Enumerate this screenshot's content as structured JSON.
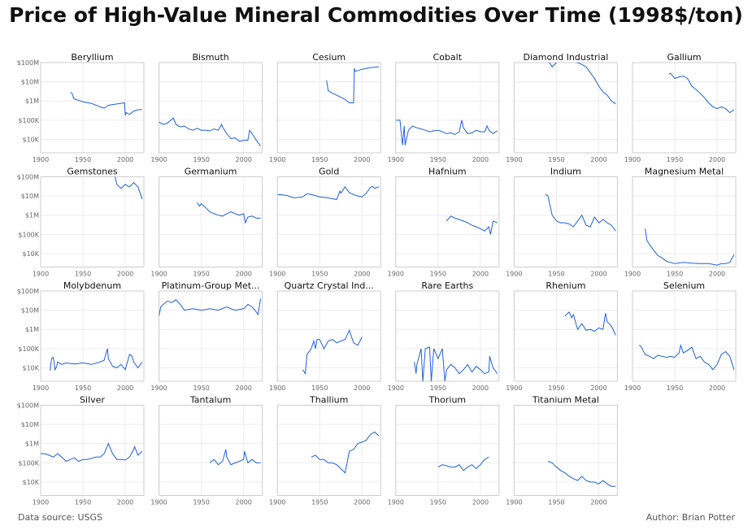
{
  "title": "Price of High-Value Mineral Commodities Over Time (1998$/ton)",
  "source": "Data source: USGS",
  "author": "Author: Brian Potter",
  "colors": {
    "line": "#1f5fe0",
    "grid": "#ececec",
    "frame": "#cccccc"
  },
  "chart_data": {
    "type": "line",
    "y_scale": "log",
    "xlim": [
      1900,
      2022
    ],
    "ylim": [
      2000,
      100000000
    ],
    "x_ticks": [
      1900,
      1950,
      2000
    ],
    "y_ticks": [
      10000,
      100000,
      1000000,
      10000000,
      100000000
    ],
    "y_tick_labels": [
      "$10K",
      "$100K",
      "$1M",
      "$10M",
      "$100M"
    ],
    "grid": true,
    "panels": [
      {
        "name": "Beryllium",
        "x": [
          1935,
          1937,
          1939,
          1941,
          1945,
          1950,
          1960,
          1970,
          1975,
          1980,
          1990,
          1995,
          1999,
          2000,
          2001,
          2005,
          2010,
          2015,
          2020
        ],
        "y": [
          2800000,
          2600000,
          1400000,
          1200000,
          1100000,
          900000,
          750000,
          500000,
          420000,
          600000,
          700000,
          760000,
          800000,
          180000,
          250000,
          200000,
          300000,
          350000,
          360000
        ]
      },
      {
        "name": "Bismuth",
        "x": [
          1900,
          1905,
          1910,
          1915,
          1917,
          1920,
          1925,
          1930,
          1935,
          1940,
          1945,
          1950,
          1955,
          1960,
          1965,
          1970,
          1974,
          1975,
          1980,
          1985,
          1990,
          1995,
          2000,
          2005,
          2007,
          2010,
          2015,
          2020
        ],
        "y": [
          80000,
          60000,
          70000,
          110000,
          130000,
          60000,
          45000,
          50000,
          35000,
          30000,
          38000,
          30000,
          30000,
          28000,
          35000,
          30000,
          60000,
          45000,
          20000,
          11000,
          12000,
          8000,
          9000,
          9000,
          30000,
          20000,
          9000,
          4500
        ]
      },
      {
        "name": "Cesium",
        "x": [
          1958,
          1960,
          1965,
          1970,
          1980,
          1985,
          1990,
          1991,
          1992,
          2000,
          2010,
          2020
        ],
        "y": [
          12000000,
          3500000,
          2500000,
          2000000,
          1200000,
          800000,
          800000,
          50000000,
          35000000,
          45000000,
          55000000,
          60000000
        ]
      },
      {
        "name": "Cobalt",
        "x": [
          1900,
          1905,
          1908,
          1910,
          1911,
          1915,
          1920,
          1925,
          1930,
          1935,
          1940,
          1945,
          1950,
          1955,
          1960,
          1965,
          1970,
          1975,
          1978,
          1980,
          1985,
          1990,
          1995,
          2000,
          2005,
          2008,
          2010,
          2015,
          2020
        ],
        "y": [
          100000,
          100000,
          5000,
          50000,
          5000,
          30000,
          50000,
          40000,
          35000,
          30000,
          25000,
          28000,
          30000,
          25000,
          20000,
          22000,
          18000,
          25000,
          100000,
          40000,
          20000,
          22000,
          30000,
          25000,
          25000,
          50000,
          30000,
          20000,
          28000
        ]
      },
      {
        "name": "Diamond Industrial",
        "x": [
          1940,
          1945,
          1950,
          1955,
          1960,
          1965,
          1970,
          1975,
          1980,
          1985,
          1990,
          1995,
          2000,
          2005,
          2010,
          2015,
          2020
        ],
        "y": [
          130000000,
          60000000,
          100000000,
          150000000,
          140000000,
          120000000,
          110000000,
          100000000,
          80000000,
          60000000,
          30000000,
          15000000,
          6000000,
          3000000,
          2000000,
          1000000,
          700000
        ]
      },
      {
        "name": "Gallium",
        "x": [
          1943,
          1945,
          1950,
          1955,
          1960,
          1965,
          1970,
          1975,
          1980,
          1985,
          1990,
          1995,
          2000,
          2005,
          2010,
          2013,
          2015,
          2020
        ],
        "y": [
          25000000,
          28000000,
          15000000,
          18000000,
          20000000,
          15000000,
          6000000,
          4000000,
          2500000,
          1500000,
          800000,
          500000,
          400000,
          500000,
          400000,
          300000,
          250000,
          350000
        ]
      },
      {
        "name": "Gemstones",
        "x": [
          1988,
          1990,
          1995,
          2000,
          2005,
          2010,
          2015,
          2020
        ],
        "y": [
          100000000,
          40000000,
          25000000,
          40000000,
          30000000,
          50000000,
          30000000,
          7000000
        ]
      },
      {
        "name": "Germanium",
        "x": [
          1945,
          1948,
          1950,
          1955,
          1960,
          1965,
          1970,
          1975,
          1980,
          1985,
          1990,
          1995,
          2000,
          2002,
          2005,
          2010,
          2015,
          2020
        ],
        "y": [
          4500000,
          3000000,
          4000000,
          2500000,
          1500000,
          1200000,
          1000000,
          900000,
          1200000,
          1500000,
          1200000,
          1000000,
          1200000,
          400000,
          800000,
          900000,
          700000,
          700000
        ]
      },
      {
        "name": "Gold",
        "x": [
          1900,
          1910,
          1920,
          1930,
          1935,
          1940,
          1950,
          1960,
          1970,
          1974,
          1975,
          1980,
          1985,
          1990,
          1995,
          2000,
          2005,
          2010,
          2012,
          2015,
          2020
        ],
        "y": [
          12000000,
          11000000,
          8000000,
          9000000,
          13000000,
          12000000,
          9000000,
          8000000,
          6500000,
          18000000,
          14000000,
          30000000,
          15000000,
          12000000,
          10000000,
          9000000,
          14000000,
          28000000,
          32000000,
          25000000,
          30000000
        ]
      },
      {
        "name": "Hafnium",
        "x": [
          1960,
          1965,
          1970,
          1975,
          1980,
          1985,
          1990,
          1995,
          2000,
          2005,
          2010,
          2012,
          2015,
          2020
        ],
        "y": [
          500000,
          900000,
          700000,
          600000,
          500000,
          400000,
          300000,
          250000,
          200000,
          150000,
          250000,
          100000,
          500000,
          400000
        ]
      },
      {
        "name": "Indium",
        "x": [
          1937,
          1940,
          1945,
          1950,
          1955,
          1960,
          1965,
          1970,
          1975,
          1980,
          1985,
          1990,
          1995,
          2000,
          2005,
          2010,
          2015,
          2020
        ],
        "y": [
          12000000,
          10000000,
          1000000,
          500000,
          400000,
          400000,
          350000,
          250000,
          500000,
          1000000,
          300000,
          250000,
          800000,
          400000,
          600000,
          400000,
          300000,
          150000
        ]
      },
      {
        "name": "Magnesium Metal",
        "x": [
          1915,
          1917,
          1920,
          1925,
          1930,
          1935,
          1940,
          1950,
          1960,
          1970,
          1980,
          1990,
          2000,
          2005,
          2010,
          2015,
          2020
        ],
        "y": [
          200000,
          50000,
          30000,
          15000,
          8000,
          6000,
          4000,
          3000,
          3500,
          3200,
          3000,
          3000,
          2500,
          3000,
          3000,
          3500,
          9000
        ]
      },
      {
        "name": "Molybdenum",
        "x": [
          1911,
          1913,
          1915,
          1917,
          1919,
          1920,
          1925,
          1930,
          1940,
          1950,
          1960,
          1970,
          1975,
          1979,
          1980,
          1985,
          1990,
          1995,
          2000,
          2005,
          2008,
          2010,
          2015,
          2020
        ],
        "y": [
          7000,
          30000,
          35000,
          8000,
          12000,
          20000,
          15000,
          18000,
          16000,
          18000,
          15000,
          20000,
          25000,
          100000,
          30000,
          12000,
          10000,
          15000,
          8000,
          50000,
          40000,
          20000,
          10000,
          20000
        ]
      },
      {
        "name": "Platinum-Group Met...",
        "x": [
          1900,
          1902,
          1905,
          1910,
          1915,
          1920,
          1925,
          1930,
          1940,
          1950,
          1960,
          1970,
          1980,
          1985,
          1990,
          2000,
          2005,
          2010,
          2015,
          2017,
          2020
        ],
        "y": [
          5000000,
          15000000,
          20000000,
          30000000,
          25000000,
          35000000,
          20000000,
          10000000,
          12000000,
          10000000,
          12000000,
          10000000,
          15000000,
          12000000,
          10000000,
          12000000,
          20000000,
          15000000,
          8000000,
          6000000,
          40000000
        ]
      },
      {
        "name": "Quartz Crystal Ind...",
        "x": [
          1930,
          1933,
          1935,
          1940,
          1943,
          1945,
          1947,
          1950,
          1955,
          1960,
          1965,
          1970,
          1975,
          1980,
          1985,
          1990,
          1995,
          2000
        ],
        "y": [
          8000,
          5000,
          50000,
          100000,
          250000,
          100000,
          300000,
          300000,
          100000,
          250000,
          300000,
          200000,
          250000,
          300000,
          900000,
          200000,
          150000,
          400000
        ]
      },
      {
        "name": "Rare Earths",
        "x": [
          1922,
          1924,
          1925,
          1930,
          1932,
          1935,
          1940,
          1942,
          1945,
          1950,
          1955,
          1958,
          1960,
          1965,
          1970,
          1975,
          1980,
          1985,
          1990,
          1995,
          2000,
          2005,
          2010,
          2011,
          2015,
          2020
        ],
        "y": [
          20000,
          5000,
          15000,
          100000,
          2000,
          100000,
          120000,
          2000,
          100000,
          30000,
          100000,
          2000,
          8000,
          15000,
          10000,
          5000,
          8000,
          15000,
          6000,
          12000,
          8000,
          5000,
          6000,
          40000,
          10000,
          5000
        ]
      },
      {
        "name": "Rhenium",
        "x": [
          1960,
          1965,
          1968,
          1970,
          1975,
          1980,
          1985,
          1990,
          1995,
          2000,
          2005,
          2008,
          2010,
          2015,
          2020
        ],
        "y": [
          5000000,
          8000000,
          4000000,
          6000000,
          1000000,
          2000000,
          900000,
          1000000,
          800000,
          1200000,
          1000000,
          7000000,
          2500000,
          1500000,
          500000
        ]
      },
      {
        "name": "Selenium",
        "x": [
          1908,
          1910,
          1915,
          1920,
          1925,
          1930,
          1935,
          1940,
          1945,
          1950,
          1955,
          1957,
          1960,
          1965,
          1970,
          1975,
          1980,
          1985,
          1990,
          1995,
          2000,
          2005,
          2010,
          2015,
          2020
        ],
        "y": [
          150000,
          130000,
          50000,
          40000,
          30000,
          45000,
          40000,
          35000,
          40000,
          35000,
          60000,
          150000,
          60000,
          80000,
          120000,
          30000,
          40000,
          20000,
          15000,
          8000,
          15000,
          50000,
          70000,
          40000,
          8000
        ]
      },
      {
        "name": "Silver",
        "x": [
          1900,
          1905,
          1910,
          1915,
          1920,
          1925,
          1930,
          1935,
          1940,
          1945,
          1950,
          1955,
          1960,
          1965,
          1970,
          1975,
          1980,
          1985,
          1990,
          1995,
          2000,
          2005,
          2010,
          2011,
          2015,
          2020
        ],
        "y": [
          300000,
          300000,
          250000,
          200000,
          300000,
          200000,
          120000,
          150000,
          180000,
          120000,
          150000,
          150000,
          170000,
          200000,
          200000,
          300000,
          1000000,
          300000,
          150000,
          150000,
          140000,
          200000,
          500000,
          700000,
          250000,
          400000
        ]
      },
      {
        "name": "Tantalum",
        "x": [
          1960,
          1965,
          1970,
          1975,
          1979,
          1980,
          1985,
          1990,
          1995,
          2000,
          2001,
          2005,
          2010,
          2015,
          2020
        ],
        "y": [
          100000,
          150000,
          80000,
          120000,
          500000,
          200000,
          80000,
          100000,
          120000,
          150000,
          400000,
          100000,
          150000,
          100000,
          100000
        ]
      },
      {
        "name": "Thallium",
        "x": [
          1940,
          1945,
          1950,
          1955,
          1960,
          1965,
          1970,
          1975,
          1980,
          1985,
          1990,
          1995,
          2000,
          2005,
          2010,
          2015,
          2020
        ],
        "y": [
          200000,
          250000,
          150000,
          150000,
          100000,
          100000,
          80000,
          50000,
          30000,
          400000,
          500000,
          1000000,
          1200000,
          1500000,
          3000000,
          4000000,
          2500000
        ]
      },
      {
        "name": "Thorium",
        "x": [
          1950,
          1955,
          1960,
          1965,
          1970,
          1975,
          1980,
          1985,
          1990,
          1995,
          2000,
          2005,
          2010
        ],
        "y": [
          60000,
          80000,
          70000,
          60000,
          60000,
          80000,
          40000,
          60000,
          80000,
          50000,
          80000,
          150000,
          200000
        ]
      },
      {
        "name": "Titanium Metal",
        "x": [
          1940,
          1945,
          1950,
          1955,
          1960,
          1965,
          1970,
          1975,
          1980,
          1985,
          1990,
          1995,
          2000,
          2005,
          2010,
          2015,
          2020
        ],
        "y": [
          120000,
          100000,
          60000,
          40000,
          30000,
          20000,
          15000,
          12000,
          20000,
          12000,
          10000,
          10000,
          8000,
          12000,
          8000,
          6000,
          6000
        ]
      }
    ]
  }
}
